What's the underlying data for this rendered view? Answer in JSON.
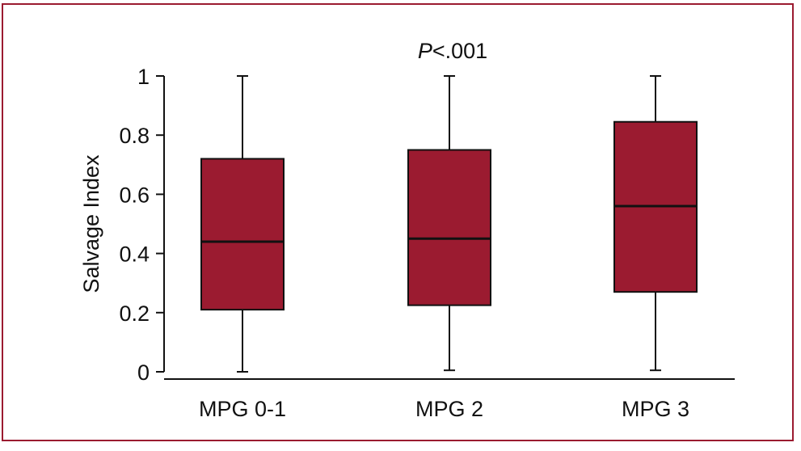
{
  "chart_data": {
    "type": "box",
    "annotation": {
      "p_symbol": "P",
      "p_value": "<.001"
    },
    "ylabel": "Salvage Index",
    "xlabel": "",
    "ylim": [
      0,
      1
    ],
    "yticks": [
      0,
      0.2,
      0.4,
      0.6,
      0.8,
      1
    ],
    "ytick_labels": [
      "0",
      "0.2",
      "0.4",
      "0.6",
      "0.8",
      "1"
    ],
    "categories": [
      "MPG 0-1",
      "MPG 2",
      "MPG 3"
    ],
    "boxes": [
      {
        "category": "MPG 0-1",
        "min": 0.0,
        "q1": 0.21,
        "median": 0.44,
        "q3": 0.72,
        "max": 1.0
      },
      {
        "category": "MPG 2",
        "min": 0.005,
        "q1": 0.225,
        "median": 0.45,
        "q3": 0.75,
        "max": 1.0
      },
      {
        "category": "MPG 3",
        "min": 0.005,
        "q1": 0.27,
        "median": 0.56,
        "q3": 0.845,
        "max": 1.0
      }
    ],
    "box_color": "#9b1b30",
    "grid": false,
    "legend": "none"
  },
  "frame_color": "#9b1b30"
}
